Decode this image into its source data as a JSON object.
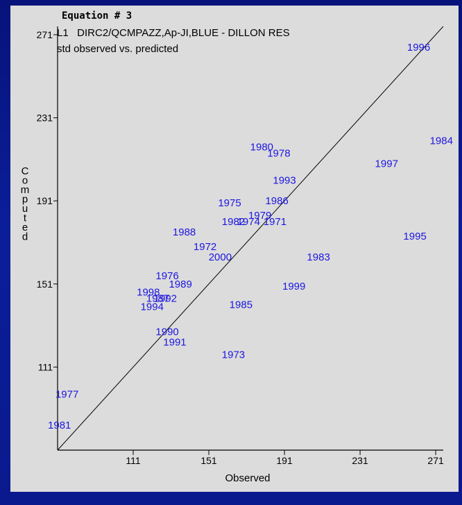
{
  "chart_data": {
    "type": "scatter",
    "title": "Equation # 3",
    "subtitle_line1": "L1   DIRC2/QCMPAZZ,Ap-JI,BLUE - DILLON RES",
    "subtitle_line2": "std observed vs. predicted",
    "xlabel": "Observed",
    "ylabel": "Computed",
    "xlim": [
      71,
      275
    ],
    "ylim": [
      71,
      275
    ],
    "x_ticks": [
      111,
      151,
      191,
      231,
      271
    ],
    "y_ticks": [
      111,
      151,
      191,
      231,
      271
    ],
    "reference_line": "1:1",
    "grid": false,
    "colors": {
      "points": "#1d16e0",
      "axes": "#000000",
      "background": "#dcdcdc",
      "frame": "#0a1a8e"
    },
    "points": [
      {
        "label": "1996",
        "x": 262,
        "y": 265
      },
      {
        "label": "1984",
        "x": 274,
        "y": 220
      },
      {
        "label": "1980",
        "x": 179,
        "y": 217
      },
      {
        "label": "1978",
        "x": 188,
        "y": 214
      },
      {
        "label": "1997",
        "x": 245,
        "y": 209
      },
      {
        "label": "1993",
        "x": 191,
        "y": 201
      },
      {
        "label": "1986",
        "x": 187,
        "y": 191
      },
      {
        "label": "1975",
        "x": 162,
        "y": 190
      },
      {
        "label": "1979",
        "x": 178,
        "y": 184
      },
      {
        "label": "1982",
        "x": 164,
        "y": 181
      },
      {
        "label": "1974",
        "x": 172,
        "y": 181
      },
      {
        "label": "1971",
        "x": 186,
        "y": 181
      },
      {
        "label": "1995",
        "x": 260,
        "y": 174
      },
      {
        "label": "1988",
        "x": 138,
        "y": 176
      },
      {
        "label": "1972",
        "x": 149,
        "y": 169
      },
      {
        "label": "2000",
        "x": 157,
        "y": 164
      },
      {
        "label": "1983",
        "x": 209,
        "y": 164
      },
      {
        "label": "1976",
        "x": 129,
        "y": 155
      },
      {
        "label": "1989",
        "x": 136,
        "y": 151
      },
      {
        "label": "1999",
        "x": 196,
        "y": 150
      },
      {
        "label": "1998",
        "x": 119,
        "y": 147
      },
      {
        "label": "1987",
        "x": 124,
        "y": 144
      },
      {
        "label": "1992",
        "x": 128,
        "y": 144
      },
      {
        "label": "1994",
        "x": 121,
        "y": 140
      },
      {
        "label": "1985",
        "x": 168,
        "y": 141
      },
      {
        "label": "1990",
        "x": 129,
        "y": 128
      },
      {
        "label": "1991",
        "x": 133,
        "y": 123
      },
      {
        "label": "1973",
        "x": 164,
        "y": 117
      },
      {
        "label": "1977",
        "x": 76,
        "y": 98
      },
      {
        "label": "1981",
        "x": 72,
        "y": 83
      }
    ]
  }
}
